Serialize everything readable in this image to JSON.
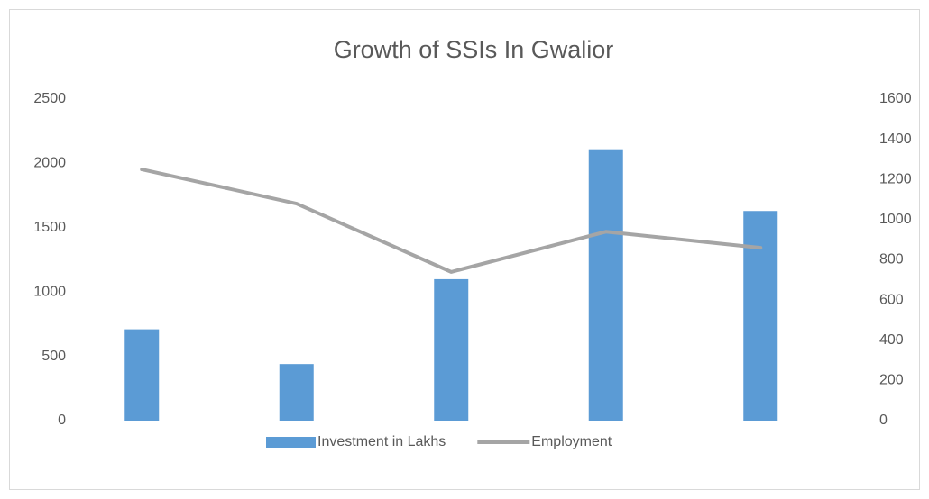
{
  "chart_data": {
    "type": "bar_line",
    "title": "Growth of SSIs In Gwalior",
    "categories": [
      null,
      null,
      null,
      null,
      null
    ],
    "series": [
      {
        "name": "Investment in Lakhs",
        "type": "bar",
        "color": "#5b9bd5",
        "values": [
          710,
          440,
          1100,
          2110,
          1630
        ]
      },
      {
        "name": "Employment",
        "type": "line",
        "axis": "y2",
        "color": "#a5a5a5",
        "values": [
          1250,
          1080,
          740,
          940,
          860
        ]
      }
    ],
    "ylim": [
      0,
      2500
    ],
    "yticks": [
      0,
      500,
      1000,
      1500,
      2000,
      2500
    ],
    "y2lim": [
      0,
      1600
    ],
    "y2ticks": [
      0,
      200,
      400,
      600,
      800,
      1000,
      1200,
      1400,
      1600
    ],
    "legend": "bottom"
  }
}
